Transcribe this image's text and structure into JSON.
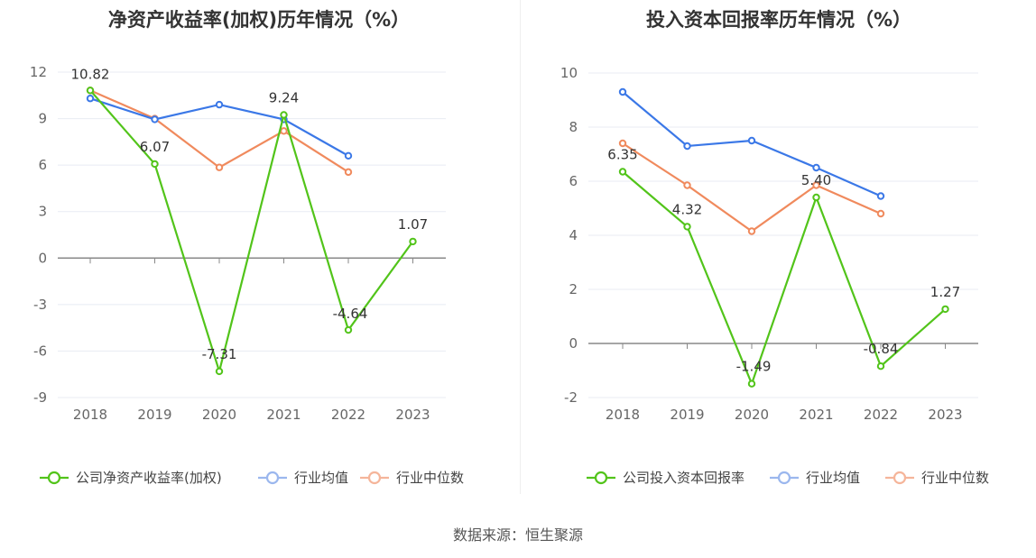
{
  "source": "数据来源：恒生聚源",
  "colors": {
    "company": "#52c41a",
    "avg": "#3b78e7",
    "median": "#f08a5d",
    "grid": "#e8ebf3",
    "axis": "#888888"
  },
  "chart_data": [
    {
      "type": "line",
      "title": "净资产收益率(加权)历年情况（%）",
      "categories": [
        "2018",
        "2019",
        "2020",
        "2021",
        "2022",
        "2023"
      ],
      "ylim": [
        -9,
        12
      ],
      "yticks": [
        -9,
        -6,
        -3,
        0,
        3,
        6,
        9,
        12
      ],
      "grid": true,
      "legend_position": "bottom",
      "series": [
        {
          "name": "公司净资产收益率(加权)",
          "color": "#52c41a",
          "values": [
            10.82,
            6.07,
            -7.31,
            9.24,
            -4.64,
            1.07
          ],
          "labeled": true
        },
        {
          "name": "行业均值",
          "color": "#3b78e7",
          "values": [
            10.3,
            8.95,
            9.9,
            8.95,
            6.6,
            null
          ],
          "labeled": false
        },
        {
          "name": "行业中位数",
          "color": "#f08a5d",
          "values": [
            10.82,
            9.0,
            5.85,
            8.2,
            5.55,
            null
          ],
          "labeled": false
        }
      ],
      "data_labels": [
        "10.82",
        "6.07",
        "-7.31",
        "9.24",
        "-4.64",
        "1.07"
      ]
    },
    {
      "type": "line",
      "title": "投入资本回报率历年情况（%）",
      "categories": [
        "2018",
        "2019",
        "2020",
        "2021",
        "2022",
        "2023"
      ],
      "ylim": [
        -2,
        10
      ],
      "yticks": [
        -2,
        0,
        2,
        4,
        6,
        8,
        10
      ],
      "grid": true,
      "legend_position": "bottom",
      "series": [
        {
          "name": "公司投入资本回报率",
          "color": "#52c41a",
          "values": [
            6.35,
            4.32,
            -1.49,
            5.4,
            -0.84,
            1.27
          ],
          "labeled": true
        },
        {
          "name": "行业均值",
          "color": "#3b78e7",
          "values": [
            9.3,
            7.3,
            7.5,
            6.5,
            5.45,
            null
          ],
          "labeled": false
        },
        {
          "name": "行业中位数",
          "color": "#f08a5d",
          "values": [
            7.4,
            5.85,
            4.15,
            5.85,
            4.8,
            null
          ],
          "labeled": false
        }
      ],
      "data_labels": [
        "6.35",
        "4.32",
        "-1.49",
        "5.40",
        "-0.84",
        "1.27"
      ]
    }
  ]
}
